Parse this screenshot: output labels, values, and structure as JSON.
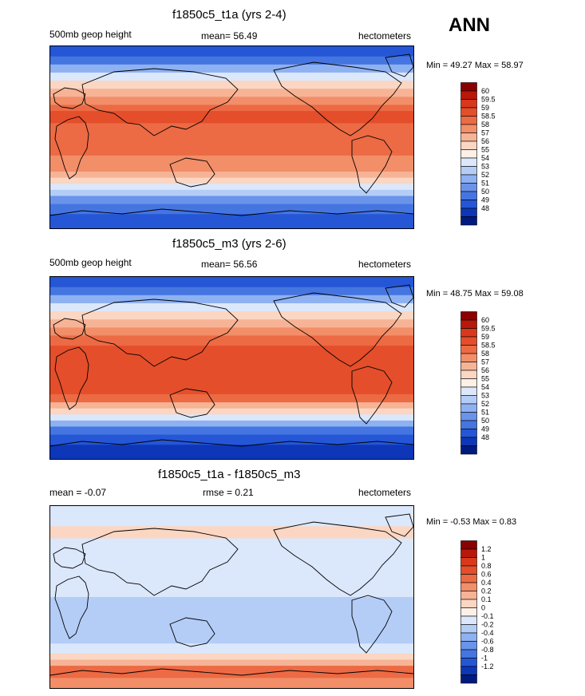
{
  "season": "ANN",
  "panels": [
    {
      "title": "f1850c5_t1a (yrs 2-4)",
      "left_label": "500mb geop height",
      "center_label": "mean=  56.49",
      "right_label": "hectometers",
      "minmax": "Min =  49.27 Max =  58.97",
      "colorbar_labels": [
        "60",
        "59.5",
        "59",
        "58.5",
        "58",
        "57",
        "56",
        "55",
        "54",
        "53",
        "52",
        "51",
        "50",
        "49",
        "48"
      ],
      "colorbar_colors": [
        "#8b0000",
        "#b8170a",
        "#d9381c",
        "#e44e2a",
        "#ec6a44",
        "#f28e68",
        "#f7b396",
        "#fbd6c2",
        "#fdf0e6",
        "#dbe7fb",
        "#b4cdf7",
        "#8eb1f2",
        "#6a93ea",
        "#4575e0",
        "#2456d6",
        "#0d37b8",
        "#001a80"
      ],
      "bands": [
        {
          "lat": 90,
          "color": "#2456d6"
        },
        {
          "lat": 80,
          "color": "#4575e0"
        },
        {
          "lat": 72,
          "color": "#8eb1f2"
        },
        {
          "lat": 64,
          "color": "#dbe7fb"
        },
        {
          "lat": 56,
          "color": "#fbd6c2"
        },
        {
          "lat": 48,
          "color": "#f7b396"
        },
        {
          "lat": 40,
          "color": "#f28e68"
        },
        {
          "lat": 32,
          "color": "#ec6a44"
        },
        {
          "lat": 26,
          "color": "#e44e2a"
        },
        {
          "lat": 14,
          "color": "#ec6a44"
        },
        {
          "lat": -18,
          "color": "#f28e68"
        },
        {
          "lat": -34,
          "color": "#f7b396"
        },
        {
          "lat": -40,
          "color": "#fbd6c2"
        },
        {
          "lat": -46,
          "color": "#dbe7fb"
        },
        {
          "lat": -52,
          "color": "#b4cdf7"
        },
        {
          "lat": -58,
          "color": "#6a93ea"
        },
        {
          "lat": -66,
          "color": "#4575e0"
        },
        {
          "lat": -76,
          "color": "#2456d6"
        }
      ]
    },
    {
      "title": "f1850c5_m3 (yrs 2-6)",
      "left_label": "500mb geop height",
      "center_label": "mean=  56.56",
      "right_label": "hectometers",
      "minmax": "Min =  48.75 Max =  59.08",
      "colorbar_labels": [
        "60",
        "59.5",
        "59",
        "58.5",
        "58",
        "57",
        "56",
        "55",
        "54",
        "53",
        "52",
        "51",
        "50",
        "49",
        "48"
      ],
      "colorbar_colors": [
        "#8b0000",
        "#b8170a",
        "#d9381c",
        "#e44e2a",
        "#ec6a44",
        "#f28e68",
        "#f7b396",
        "#fbd6c2",
        "#fdf0e6",
        "#dbe7fb",
        "#b4cdf7",
        "#8eb1f2",
        "#6a93ea",
        "#4575e0",
        "#2456d6",
        "#0d37b8",
        "#001a80"
      ],
      "bands": [
        {
          "lat": 90,
          "color": "#2456d6"
        },
        {
          "lat": 80,
          "color": "#4575e0"
        },
        {
          "lat": 72,
          "color": "#8eb1f2"
        },
        {
          "lat": 64,
          "color": "#dbe7fb"
        },
        {
          "lat": 56,
          "color": "#fbd6c2"
        },
        {
          "lat": 48,
          "color": "#f7b396"
        },
        {
          "lat": 40,
          "color": "#f28e68"
        },
        {
          "lat": 32,
          "color": "#ec6a44"
        },
        {
          "lat": 22,
          "color": "#e44e2a"
        },
        {
          "lat": -26,
          "color": "#ec6a44"
        },
        {
          "lat": -34,
          "color": "#f7b396"
        },
        {
          "lat": -40,
          "color": "#fbd6c2"
        },
        {
          "lat": -46,
          "color": "#dbe7fb"
        },
        {
          "lat": -52,
          "color": "#8eb1f2"
        },
        {
          "lat": -58,
          "color": "#4575e0"
        },
        {
          "lat": -66,
          "color": "#2456d6"
        },
        {
          "lat": -76,
          "color": "#0d37b8"
        }
      ]
    },
    {
      "title": "f1850c5_t1a - f1850c5_m3",
      "left_label": "mean =  -0.07",
      "center_label": "rmse =   0.21",
      "right_label": "hectometers",
      "minmax": "Min =  -0.53 Max =   0.83",
      "colorbar_labels": [
        "1.2",
        "1",
        "0.8",
        "0.6",
        "0.4",
        "0.2",
        "0.1",
        "0",
        "-0.1",
        "-0.2",
        "-0.4",
        "-0.6",
        "-0.8",
        "-1",
        "-1.2"
      ],
      "colorbar_colors": [
        "#8b0000",
        "#b8170a",
        "#d9381c",
        "#e44e2a",
        "#ec6a44",
        "#f28e68",
        "#f7b396",
        "#fbd6c2",
        "#fdf0e6",
        "#dbe7fb",
        "#b4cdf7",
        "#8eb1f2",
        "#6a93ea",
        "#4575e0",
        "#2456d6",
        "#0d37b8",
        "#001a80"
      ],
      "bands": [
        {
          "lat": 90,
          "color": "#dbe7fb"
        },
        {
          "lat": 70,
          "color": "#fbd6c2"
        },
        {
          "lat": 58,
          "color": "#dbe7fb"
        },
        {
          "lat": 30,
          "color": "#dbe7fb"
        },
        {
          "lat": 0,
          "color": "#b4cdf7"
        },
        {
          "lat": -30,
          "color": "#b4cdf7"
        },
        {
          "lat": -46,
          "color": "#dbe7fb"
        },
        {
          "lat": -56,
          "color": "#fbd6c2"
        },
        {
          "lat": -62,
          "color": "#f7b396"
        },
        {
          "lat": -68,
          "color": "#ec6a44"
        },
        {
          "lat": -80,
          "color": "#f28e68"
        }
      ]
    }
  ],
  "chart_data": [
    {
      "type": "heatmap",
      "title": "f1850c5_t1a (yrs 2-4)",
      "variable": "500mb geop height",
      "units": "hectometers",
      "mean": 56.49,
      "min": 49.27,
      "max": 58.97,
      "levels": [
        48,
        49,
        50,
        51,
        52,
        53,
        54,
        55,
        56,
        57,
        58,
        58.5,
        59,
        59.5,
        60
      ]
    },
    {
      "type": "heatmap",
      "title": "f1850c5_m3 (yrs 2-6)",
      "variable": "500mb geop height",
      "units": "hectometers",
      "mean": 56.56,
      "min": 48.75,
      "max": 59.08,
      "levels": [
        48,
        49,
        50,
        51,
        52,
        53,
        54,
        55,
        56,
        57,
        58,
        58.5,
        59,
        59.5,
        60
      ]
    },
    {
      "type": "heatmap",
      "title": "f1850c5_t1a - f1850c5_m3",
      "units": "hectometers",
      "mean": -0.07,
      "rmse": 0.21,
      "min": -0.53,
      "max": 0.83,
      "levels": [
        -1.2,
        -1,
        -0.8,
        -0.6,
        -0.4,
        -0.2,
        -0.1,
        0,
        0.1,
        0.2,
        0.4,
        0.6,
        0.8,
        1,
        1.2
      ]
    }
  ]
}
